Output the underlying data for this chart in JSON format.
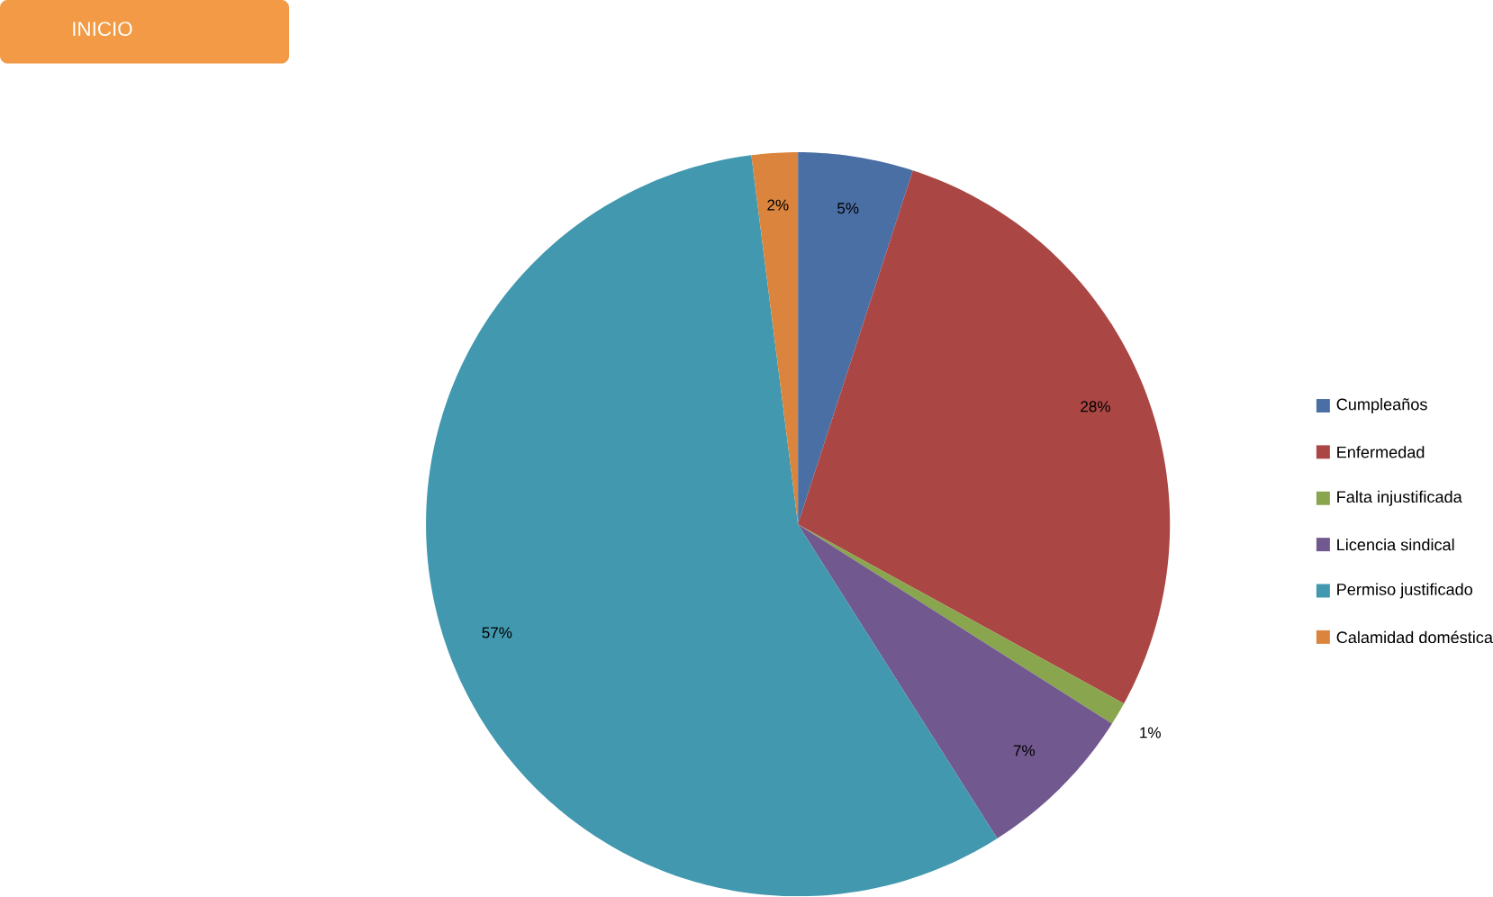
{
  "chart_data": {
    "type": "pie",
    "categories": [
      "Cumpleaños",
      "Enfermedad",
      "Falta injustificada",
      "Licencia sindical",
      "Permiso justificado",
      "Calamidad doméstica"
    ],
    "values": [
      5,
      28,
      1,
      7,
      57,
      2
    ],
    "value_labels": [
      "5%",
      "28%",
      "1%",
      "7%",
      "57%",
      "2%"
    ],
    "colors": [
      "#4a6fa5",
      "#aa4643",
      "#89a54e",
      "#71588f",
      "#4198af",
      "#db843d"
    ],
    "legend": "right",
    "annotations": [
      "INICIO"
    ]
  }
}
